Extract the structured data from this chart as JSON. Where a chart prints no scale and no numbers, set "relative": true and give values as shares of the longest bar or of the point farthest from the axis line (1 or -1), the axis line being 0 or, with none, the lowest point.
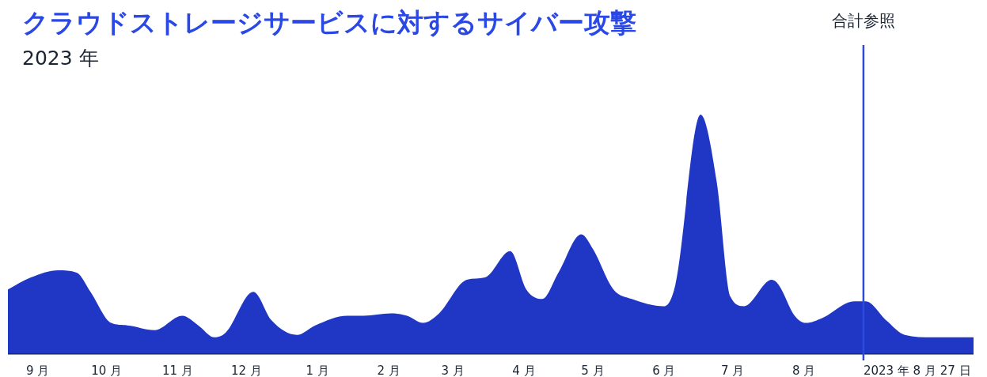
{
  "chart_data": {
    "type": "area",
    "title": "クラウドストレージサービスに対するサイバー攻撃",
    "subtitle": "2023 年",
    "relative": true,
    "color": "#1f37c4",
    "x": [
      "2022-08-19",
      "2022-08-29",
      "2022-09-10",
      "2022-09-18",
      "2022-09-24",
      "2022-10-03",
      "2022-10-10",
      "2022-10-22",
      "2022-11-03",
      "2022-11-10",
      "2022-11-17",
      "2022-11-22",
      "2022-12-04",
      "2022-12-12",
      "2022-12-23",
      "2022-12-31",
      "2023-01-14",
      "2023-01-21",
      "2023-02-02",
      "2023-02-09",
      "2023-02-16",
      "2023-02-23",
      "2023-03-07",
      "2023-03-15",
      "2023-03-26",
      "2023-04-02",
      "2023-04-09",
      "2023-04-16",
      "2023-04-26",
      "2023-05-01",
      "2023-05-10",
      "2023-05-18",
      "2023-06-01",
      "2023-06-06",
      "2023-06-17",
      "2023-06-24",
      "2023-06-30",
      "2023-07-06",
      "2023-07-18",
      "2023-07-21",
      "2023-07-28",
      "2023-08-02",
      "2023-08-09",
      "2023-08-23",
      "2023-08-28",
      "2023-09-06",
      "2023-09-14",
      "2023-09-26",
      "2023-10-14"
    ],
    "values": [
      0.27,
      0.32,
      0.35,
      0.34,
      0.26,
      0.13,
      0.12,
      0.1,
      0.16,
      0.12,
      0.07,
      0.09,
      0.26,
      0.14,
      0.08,
      0.12,
      0.16,
      0.16,
      0.17,
      0.16,
      0.13,
      0.17,
      0.31,
      0.32,
      0.43,
      0.27,
      0.23,
      0.34,
      0.5,
      0.44,
      0.27,
      0.23,
      0.2,
      0.29,
      1,
      0.72,
      0.24,
      0.2,
      0.31,
      0.29,
      0.16,
      0.13,
      0.15,
      0.22,
      0.22,
      0.14,
      0.08,
      0.07,
      0.07
    ],
    "xlim": [
      "2022-08-19",
      "2023-10-14"
    ],
    "xticks": [
      {
        "value": "2022-09-01",
        "label": "9 月"
      },
      {
        "value": "2022-10-01",
        "label": "10 月"
      },
      {
        "value": "2022-11-01",
        "label": "11 月"
      },
      {
        "value": "2022-12-01",
        "label": "12 月"
      },
      {
        "value": "2023-01-01",
        "label": "1 月"
      },
      {
        "value": "2023-02-01",
        "label": "2 月"
      },
      {
        "value": "2023-03-01",
        "label": "3 月"
      },
      {
        "value": "2023-04-01",
        "label": "4 月"
      },
      {
        "value": "2023-05-01",
        "label": "5 月"
      },
      {
        "value": "2023-06-01",
        "label": "6 月"
      },
      {
        "value": "2023-07-01",
        "label": "7 月"
      },
      {
        "value": "2023-08-01",
        "label": "8 月"
      }
    ],
    "ref_lines": [
      {
        "axis": "x",
        "value": "2023-08-27",
        "label": "合計参照",
        "color": "#2d4ae0"
      }
    ],
    "annotations": [
      {
        "text": "2023 年 8 月 27 日",
        "x": "2023-08-27",
        "y": 0
      }
    ]
  }
}
